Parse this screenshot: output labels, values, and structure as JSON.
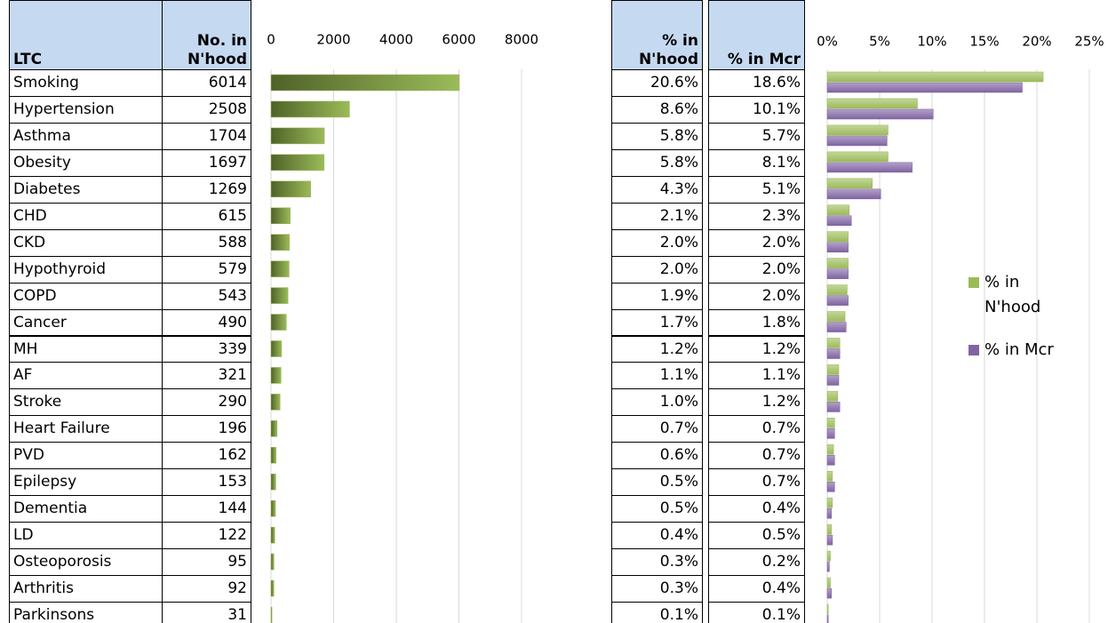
{
  "chart_data": [
    {
      "type": "bar",
      "orientation": "horizontal",
      "category_label": "LTC",
      "value_name": "No. in N'hood",
      "categories": [
        "Smoking",
        "Hypertension",
        "Asthma",
        "Obesity",
        "Diabetes",
        "CHD",
        "CKD",
        "Hypothyroid",
        "COPD",
        "Cancer",
        "MH",
        "AF",
        "Stroke",
        "Heart Failure",
        "PVD",
        "Epilepsy",
        "Dementia",
        "LD",
        "Osteoporosis",
        "Arthritis",
        "Parkinsons"
      ],
      "values": [
        6014,
        2508,
        1704,
        1697,
        1269,
        615,
        588,
        579,
        543,
        490,
        339,
        321,
        290,
        196,
        162,
        153,
        144,
        122,
        95,
        92,
        31
      ],
      "color": "#9bbb59",
      "xlim": [
        0,
        8000
      ],
      "xticks": [
        0,
        2000,
        4000,
        6000,
        8000
      ],
      "grid": true
    },
    {
      "type": "bar",
      "orientation": "horizontal",
      "series": [
        {
          "name": "% in N'hood",
          "color": "#9bbb59",
          "values": [
            20.6,
            8.6,
            5.8,
            5.8,
            4.3,
            2.1,
            2.0,
            2.0,
            1.9,
            1.7,
            1.2,
            1.1,
            1.0,
            0.7,
            0.6,
            0.5,
            0.5,
            0.4,
            0.3,
            0.3,
            0.1
          ],
          "value_labels": [
            "20.6%",
            "8.6%",
            "5.8%",
            "5.8%",
            "4.3%",
            "2.1%",
            "2.0%",
            "2.0%",
            "1.9%",
            "1.7%",
            "1.2%",
            "1.1%",
            "1.0%",
            "0.7%",
            "0.6%",
            "0.5%",
            "0.5%",
            "0.4%",
            "0.3%",
            "0.3%",
            "0.1%"
          ]
        },
        {
          "name": "% in Mcr",
          "color": "#8064a2",
          "values": [
            18.6,
            10.1,
            5.7,
            8.1,
            5.1,
            2.3,
            2.0,
            2.0,
            2.0,
            1.8,
            1.2,
            1.1,
            1.2,
            0.7,
            0.7,
            0.7,
            0.4,
            0.5,
            0.2,
            0.4,
            0.1
          ],
          "value_labels": [
            "18.6%",
            "10.1%",
            "5.7%",
            "8.1%",
            "5.1%",
            "2.3%",
            "2.0%",
            "2.0%",
            "2.0%",
            "1.8%",
            "1.2%",
            "1.1%",
            "1.2%",
            "0.7%",
            "0.7%",
            "0.7%",
            "0.4%",
            "0.5%",
            "0.2%",
            "0.4%",
            "0.1%"
          ]
        }
      ],
      "xlim": [
        0,
        25
      ],
      "xticks": [
        {
          "value": 0,
          "label": "0%"
        },
        {
          "value": 5,
          "label": "5%"
        },
        {
          "value": 10,
          "label": "10%"
        },
        {
          "value": 15,
          "label": "15%"
        },
        {
          "value": 20,
          "label": "20%"
        },
        {
          "value": 25,
          "label": "25%"
        }
      ],
      "grid": true,
      "legend": "right"
    }
  ]
}
